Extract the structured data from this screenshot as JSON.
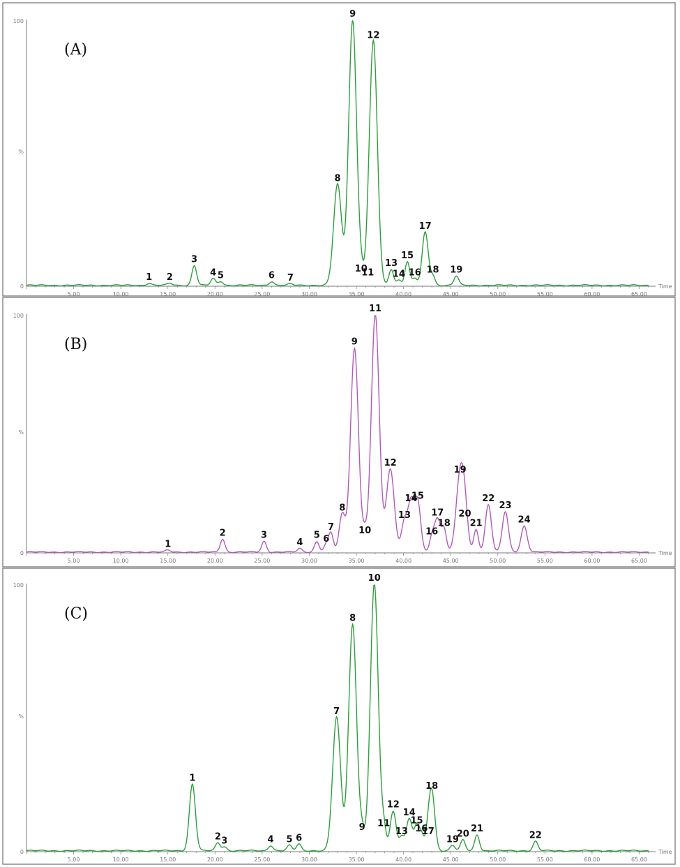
{
  "chart_data": [
    {
      "type": "line",
      "panel_label": "(A)",
      "color": "#2e9e3c",
      "x_unit_label": "Time",
      "y_tick_labels": [
        "100",
        "%",
        "0"
      ],
      "x_tick_labels": [
        "5.00",
        "10.00",
        "15.00",
        "20.00",
        "25.00",
        "30.00",
        "35.00",
        "40.00",
        "45.00",
        "50.00",
        "55.00",
        "60.00",
        "65.00"
      ],
      "xlim": [
        0,
        66
      ],
      "ylim": [
        0,
        100
      ],
      "peaks": [
        {
          "label": "1",
          "x": 13.0,
          "y": 0.8
        },
        {
          "label": "2",
          "x": 15.2,
          "y": 0.8
        },
        {
          "label": "3",
          "x": 17.8,
          "y": 7.5
        },
        {
          "label": "4",
          "x": 19.8,
          "y": 2.5
        },
        {
          "label": "5",
          "x": 20.6,
          "y": 1.5
        },
        {
          "label": "6",
          "x": 26.0,
          "y": 1.5
        },
        {
          "label": "7",
          "x": 28.0,
          "y": 0.5
        },
        {
          "label": "8",
          "x": 33.0,
          "y": 38.0
        },
        {
          "label": "9",
          "x": 34.6,
          "y": 100.0
        },
        {
          "label": "10",
          "x": 35.5,
          "y": 4.0
        },
        {
          "label": "11",
          "x": 36.2,
          "y": 2.5
        },
        {
          "label": "12",
          "x": 36.8,
          "y": 92.0
        },
        {
          "label": "13",
          "x": 38.7,
          "y": 6.0
        },
        {
          "label": "14",
          "x": 39.5,
          "y": 2.0
        },
        {
          "label": "15",
          "x": 40.4,
          "y": 9.0
        },
        {
          "label": "16",
          "x": 41.2,
          "y": 2.5
        },
        {
          "label": "17",
          "x": 42.3,
          "y": 20.0
        },
        {
          "label": "18",
          "x": 43.1,
          "y": 3.5
        },
        {
          "label": "19",
          "x": 45.6,
          "y": 3.5
        }
      ]
    },
    {
      "type": "line",
      "panel_label": "(B)",
      "color": "#b05ab8",
      "x_unit_label": "Time",
      "y_tick_labels": [
        "100",
        "%",
        "0"
      ],
      "x_tick_labels": [
        "5.00",
        "10.00",
        "15.00",
        "20.00",
        "25.00",
        "30.00",
        "35.00",
        "40.00",
        "45.00",
        "50.00",
        "55.00",
        "60.00",
        "65.00"
      ],
      "xlim": [
        0,
        66
      ],
      "ylim": [
        0,
        100
      ],
      "peaks": [
        {
          "label": "1",
          "x": 15.0,
          "y": 0.8
        },
        {
          "label": "2",
          "x": 20.8,
          "y": 5.5
        },
        {
          "label": "3",
          "x": 25.2,
          "y": 4.5
        },
        {
          "label": "4",
          "x": 29.0,
          "y": 1.5
        },
        {
          "label": "5",
          "x": 30.8,
          "y": 4.5
        },
        {
          "label": "6",
          "x": 31.8,
          "y": 3.0
        },
        {
          "label": "7",
          "x": 32.3,
          "y": 8.0
        },
        {
          "label": "8",
          "x": 33.5,
          "y": 16.0
        },
        {
          "label": "9",
          "x": 34.8,
          "y": 86.0
        },
        {
          "label": "10",
          "x": 35.9,
          "y": 6.5
        },
        {
          "label": "11",
          "x": 37.0,
          "y": 100.0
        },
        {
          "label": "12",
          "x": 38.6,
          "y": 35.0
        },
        {
          "label": "13",
          "x": 40.1,
          "y": 13.0
        },
        {
          "label": "14",
          "x": 40.8,
          "y": 20.0
        },
        {
          "label": "15",
          "x": 41.5,
          "y": 21.0
        },
        {
          "label": "16",
          "x": 43.0,
          "y": 6.0
        },
        {
          "label": "17",
          "x": 43.6,
          "y": 14.0
        },
        {
          "label": "18",
          "x": 44.3,
          "y": 9.5
        },
        {
          "label": "19",
          "x": 46.0,
          "y": 32.0
        },
        {
          "label": "20",
          "x": 46.5,
          "y": 13.5
        },
        {
          "label": "21",
          "x": 47.7,
          "y": 9.5
        },
        {
          "label": "22",
          "x": 49.0,
          "y": 20.0
        },
        {
          "label": "23",
          "x": 50.8,
          "y": 17.0
        },
        {
          "label": "24",
          "x": 52.8,
          "y": 11.0
        }
      ]
    },
    {
      "type": "line",
      "panel_label": "(C)",
      "color": "#2e9e3c",
      "x_unit_label": "Time",
      "y_tick_labels": [
        "100",
        "%",
        "0"
      ],
      "x_tick_labels": [
        "5.00",
        "10.00",
        "15.00",
        "20.00",
        "25.00",
        "30.00",
        "35.00",
        "40.00",
        "45.00",
        "50.00",
        "55.00",
        "60.00",
        "65.00"
      ],
      "xlim": [
        0,
        66
      ],
      "ylim": [
        0,
        100
      ],
      "peaks": [
        {
          "label": "1",
          "x": 17.6,
          "y": 25.0
        },
        {
          "label": "2",
          "x": 20.3,
          "y": 3.0
        },
        {
          "label": "3",
          "x": 21.0,
          "y": 1.5
        },
        {
          "label": "4",
          "x": 25.9,
          "y": 2.0
        },
        {
          "label": "5",
          "x": 27.9,
          "y": 2.0
        },
        {
          "label": "6",
          "x": 28.9,
          "y": 2.5
        },
        {
          "label": "7",
          "x": 32.9,
          "y": 50.0
        },
        {
          "label": "8",
          "x": 34.6,
          "y": 85.0
        },
        {
          "label": "9",
          "x": 35.6,
          "y": 6.5
        },
        {
          "label": "10",
          "x": 36.9,
          "y": 100.0
        },
        {
          "label": "11",
          "x": 37.9,
          "y": 8.0
        },
        {
          "label": "12",
          "x": 38.9,
          "y": 15.0
        },
        {
          "label": "13",
          "x": 39.8,
          "y": 5.0
        },
        {
          "label": "14",
          "x": 40.6,
          "y": 12.0
        },
        {
          "label": "15",
          "x": 41.4,
          "y": 9.0
        },
        {
          "label": "16",
          "x": 41.9,
          "y": 6.0
        },
        {
          "label": "17",
          "x": 42.6,
          "y": 5.0
        },
        {
          "label": "18",
          "x": 43.0,
          "y": 22.0
        },
        {
          "label": "19",
          "x": 45.2,
          "y": 2.0
        },
        {
          "label": "20",
          "x": 46.3,
          "y": 4.0
        },
        {
          "label": "21",
          "x": 47.8,
          "y": 6.0
        },
        {
          "label": "22",
          "x": 54.0,
          "y": 3.5
        }
      ]
    }
  ]
}
